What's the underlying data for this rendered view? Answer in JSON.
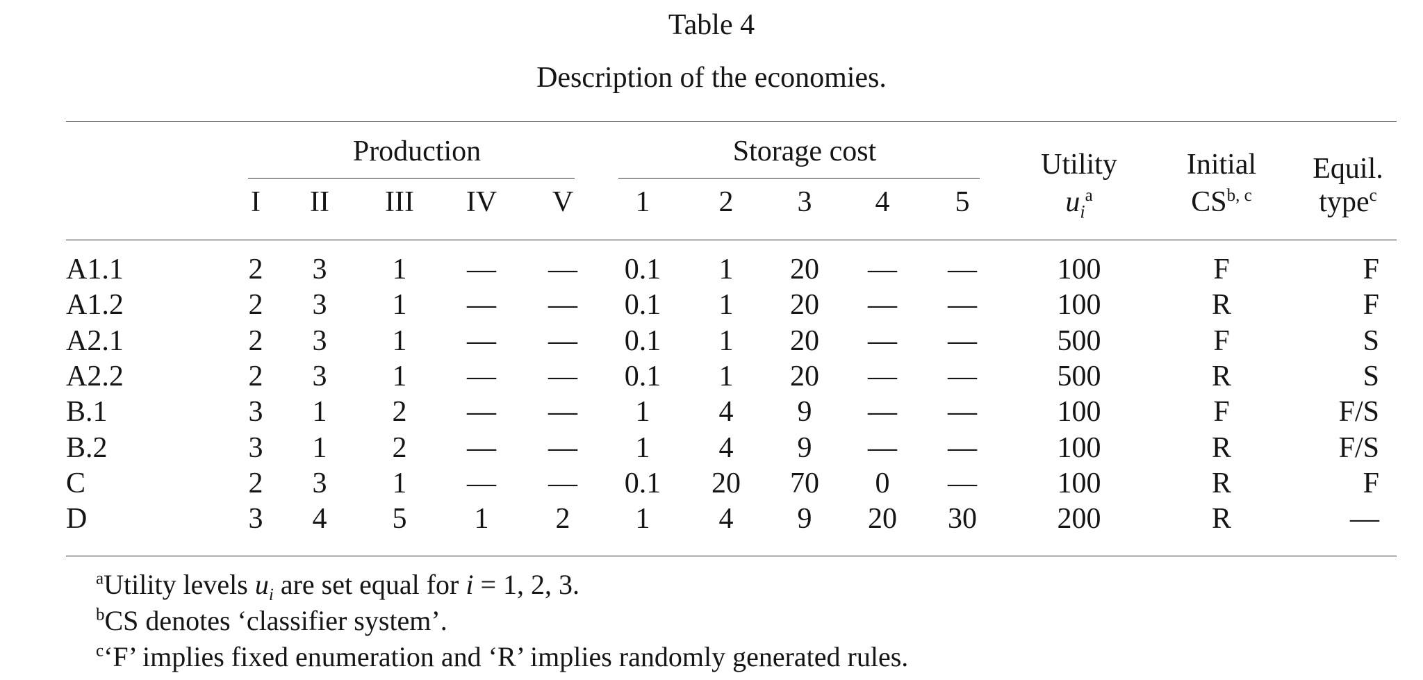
{
  "table": {
    "title": "Table 4",
    "caption": "Description of the economies.",
    "groups": {
      "production": "Production",
      "storage": "Storage cost"
    },
    "production_cols": [
      "I",
      "II",
      "III",
      "IV",
      "V"
    ],
    "storage_cols": [
      "1",
      "2",
      "3",
      "4",
      "5"
    ],
    "utility": {
      "line1": "Utility",
      "symbol": "u",
      "sub": "i",
      "sup": "a"
    },
    "initial": {
      "line1": "Initial",
      "line2": "CS",
      "sup": "b, c"
    },
    "equil": {
      "line1": "Equil.",
      "line2": "type",
      "sup": "c"
    },
    "rows": [
      {
        "name": "A1.1",
        "cells": [
          "2",
          "3",
          "1",
          "—",
          "—",
          "0.1",
          "1",
          "20",
          "—",
          "—",
          "100",
          "F",
          "F"
        ]
      },
      {
        "name": "A1.2",
        "cells": [
          "2",
          "3",
          "1",
          "—",
          "—",
          "0.1",
          "1",
          "20",
          "—",
          "—",
          "100",
          "R",
          "F"
        ]
      },
      {
        "name": "A2.1",
        "cells": [
          "2",
          "3",
          "1",
          "—",
          "—",
          "0.1",
          "1",
          "20",
          "—",
          "—",
          "500",
          "F",
          "S"
        ]
      },
      {
        "name": "A2.2",
        "cells": [
          "2",
          "3",
          "1",
          "—",
          "—",
          "0.1",
          "1",
          "20",
          "—",
          "—",
          "500",
          "R",
          "S"
        ]
      },
      {
        "name": "B.1",
        "cells": [
          "3",
          "1",
          "2",
          "—",
          "—",
          "1",
          "4",
          "9",
          "—",
          "—",
          "100",
          "F",
          "F/S"
        ]
      },
      {
        "name": "B.2",
        "cells": [
          "3",
          "1",
          "2",
          "—",
          "—",
          "1",
          "4",
          "9",
          "—",
          "—",
          "100",
          "R",
          "F/S"
        ]
      },
      {
        "name": "C",
        "cells": [
          "2",
          "3",
          "1",
          "—",
          "—",
          "0.1",
          "20",
          "70",
          "0",
          "—",
          "100",
          "R",
          "F"
        ]
      },
      {
        "name": "D",
        "cells": [
          "3",
          "4",
          "5",
          "1",
          "2",
          "1",
          "4",
          "9",
          "20",
          "30",
          "200",
          "R",
          "—"
        ]
      }
    ]
  },
  "footnotes": {
    "a": {
      "mark": "a",
      "pre": "Utility levels ",
      "var": "u",
      "sub": "i",
      "mid": " are set equal for ",
      "var2": "i",
      "post": " = 1, 2, 3."
    },
    "b": {
      "mark": "b",
      "text": "CS denotes ‘classifier system’."
    },
    "c": {
      "mark": "c",
      "text": "‘F’ implies fixed enumeration and ‘R’ implies randomly generated rules."
    }
  }
}
